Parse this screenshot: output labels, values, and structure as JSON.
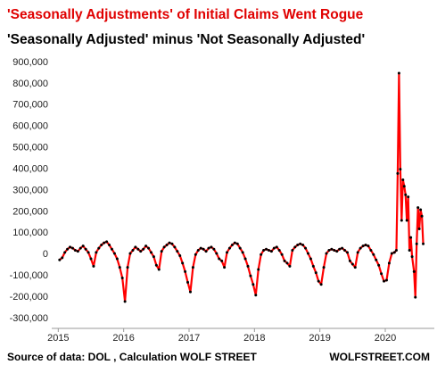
{
  "chart_data": {
    "type": "line",
    "title": "'Seasonally Adjustments' of Initial Claims Went Rogue",
    "subtitle": "'Seasonally Adjusted' minus 'Not Seasonally Adjusted'",
    "source": "Source of data: DOL , Calculation WOLF STREET",
    "brand": "WOLFSTREET.COM",
    "color": "#ff0000",
    "marker_color": "#000000",
    "x": [
      2015.02,
      2015.06,
      2015.1,
      2015.14,
      2015.18,
      2015.22,
      2015.26,
      2015.3,
      2015.34,
      2015.38,
      2015.42,
      2015.46,
      2015.5,
      2015.54,
      2015.58,
      2015.62,
      2015.66,
      2015.7,
      2015.74,
      2015.78,
      2015.82,
      2015.86,
      2015.9,
      2015.94,
      2015.98,
      2016.02,
      2016.06,
      2016.1,
      2016.14,
      2016.18,
      2016.22,
      2016.26,
      2016.3,
      2016.34,
      2016.38,
      2016.42,
      2016.46,
      2016.5,
      2016.54,
      2016.58,
      2016.62,
      2016.66,
      2016.7,
      2016.74,
      2016.78,
      2016.82,
      2016.86,
      2016.9,
      2016.94,
      2016.98,
      2017.02,
      2017.06,
      2017.1,
      2017.14,
      2017.18,
      2017.22,
      2017.26,
      2017.3,
      2017.34,
      2017.38,
      2017.42,
      2017.46,
      2017.5,
      2017.54,
      2017.58,
      2017.62,
      2017.66,
      2017.7,
      2017.74,
      2017.78,
      2017.82,
      2017.86,
      2017.9,
      2017.94,
      2017.98,
      2018.02,
      2018.06,
      2018.1,
      2018.14,
      2018.18,
      2018.22,
      2018.26,
      2018.3,
      2018.34,
      2018.38,
      2018.42,
      2018.46,
      2018.5,
      2018.54,
      2018.58,
      2018.62,
      2018.66,
      2018.7,
      2018.74,
      2018.78,
      2018.82,
      2018.86,
      2018.9,
      2018.94,
      2018.98,
      2019.02,
      2019.06,
      2019.1,
      2019.14,
      2019.18,
      2019.22,
      2019.26,
      2019.3,
      2019.34,
      2019.38,
      2019.42,
      2019.46,
      2019.5,
      2019.54,
      2019.58,
      2019.62,
      2019.66,
      2019.7,
      2019.74,
      2019.78,
      2019.82,
      2019.86,
      2019.9,
      2019.94,
      2019.98,
      2020.02,
      2020.06,
      2020.1,
      2020.14,
      2020.17,
      2020.19,
      2020.21,
      2020.23,
      2020.25,
      2020.27,
      2020.29,
      2020.31,
      2020.33,
      2020.35,
      2020.37,
      2020.39,
      2020.41,
      2020.44,
      2020.46,
      2020.48,
      2020.5,
      2020.52,
      2020.54,
      2020.56,
      2020.58
    ],
    "values": [
      -25000,
      -15000,
      10000,
      25000,
      35000,
      30000,
      20000,
      15000,
      30000,
      40000,
      25000,
      10000,
      -20000,
      -55000,
      10000,
      30000,
      45000,
      55000,
      60000,
      45000,
      25000,
      5000,
      -20000,
      -60000,
      -110000,
      -220000,
      -60000,
      5000,
      20000,
      35000,
      25000,
      15000,
      25000,
      40000,
      30000,
      10000,
      -10000,
      -50000,
      -70000,
      15000,
      35000,
      45000,
      55000,
      50000,
      35000,
      15000,
      -5000,
      -40000,
      -80000,
      -130000,
      -175000,
      -60000,
      0,
      20000,
      30000,
      25000,
      15000,
      30000,
      35000,
      25000,
      5000,
      -20000,
      -30000,
      -60000,
      10000,
      30000,
      45000,
      55000,
      50000,
      30000,
      10000,
      -20000,
      -55000,
      -100000,
      -140000,
      -190000,
      -70000,
      0,
      20000,
      25000,
      20000,
      15000,
      30000,
      35000,
      20000,
      0,
      -30000,
      -40000,
      -55000,
      20000,
      35000,
      45000,
      50000,
      45000,
      30000,
      5000,
      -20000,
      -55000,
      -85000,
      -125000,
      -140000,
      -60000,
      5000,
      20000,
      25000,
      20000,
      15000,
      25000,
      30000,
      20000,
      10000,
      -30000,
      -45000,
      -60000,
      10000,
      30000,
      40000,
      45000,
      40000,
      20000,
      0,
      -25000,
      -50000,
      -90000,
      -125000,
      -120000,
      -40000,
      5000,
      10000,
      20000,
      380000,
      850000,
      400000,
      160000,
      350000,
      320000,
      280000,
      160000,
      270000,
      20000,
      80000,
      -10000,
      -80000,
      -200000,
      50000,
      220000,
      120000,
      210000,
      180000,
      50000
    ],
    "xlim": [
      2014.9,
      2020.75
    ],
    "xticks": [
      2015,
      2016,
      2017,
      2018,
      2019,
      2020
    ],
    "ylim": [
      -300000,
      900000
    ],
    "yticks": [
      {
        "value": -300000,
        "label": "-300,000"
      },
      {
        "value": -200000,
        "label": "-200,000"
      },
      {
        "value": -100000,
        "label": "-100,000"
      },
      0,
      {
        "value": 100000,
        "label": "100,000"
      },
      {
        "value": 200000,
        "label": "200,000"
      },
      {
        "value": 300000,
        "label": "300,000"
      },
      {
        "value": 400000,
        "label": "400,000"
      },
      {
        "value": 500000,
        "label": "500,000"
      },
      {
        "value": 600000,
        "label": "600,000"
      },
      {
        "value": 700000,
        "label": "700,000"
      },
      {
        "value": 800000,
        "label": "800,000"
      },
      {
        "value": 900000,
        "label": "900,000"
      }
    ]
  }
}
